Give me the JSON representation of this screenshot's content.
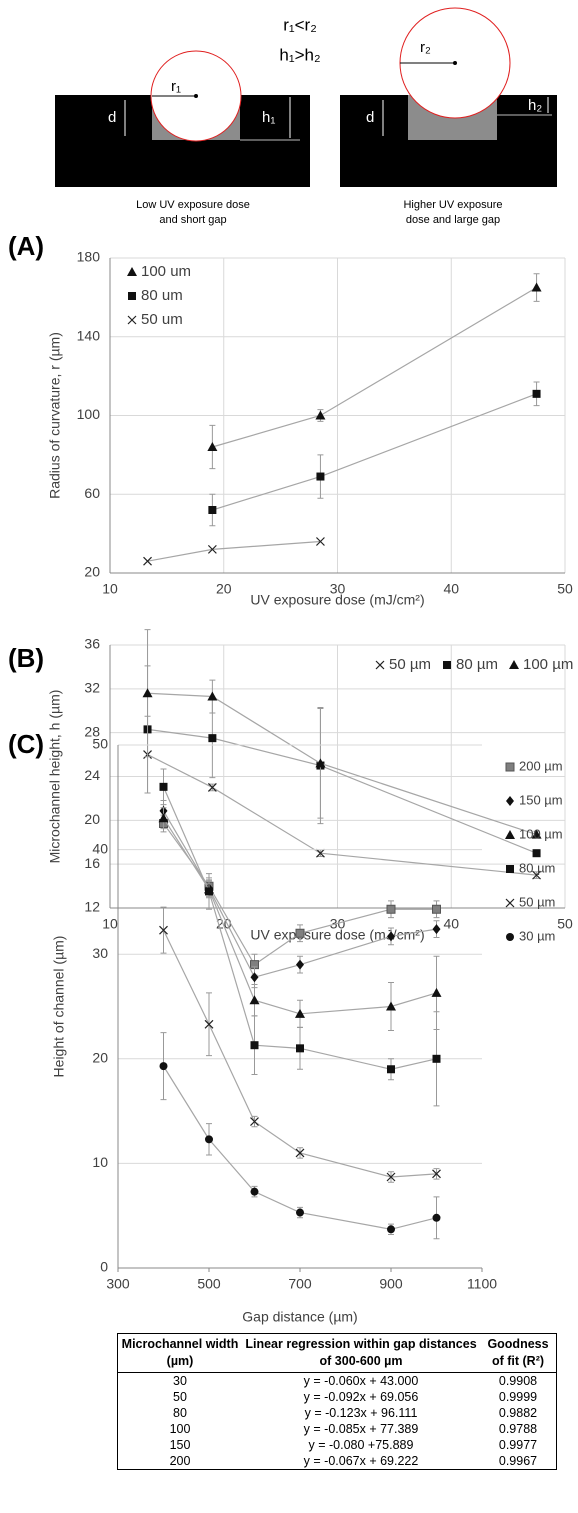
{
  "diagram": {
    "relation_r": "r₁<r₂",
    "relation_h": "h₁>h₂",
    "left": {
      "r": "r₁",
      "d": "d",
      "h": "h₁",
      "caption_1": "Low UV exposure  dose",
      "caption_2": "and short gap"
    },
    "right": {
      "r": "r₂",
      "d": "d",
      "h": "h₂",
      "caption_1": "Higher UV exposure",
      "caption_2": "dose and large gap"
    }
  },
  "chart_data": [
    {
      "type": "line",
      "label": "(A)",
      "xlabel": "UV exposure dose (mJ/cm²)",
      "ylabel": "Radius of curvature, r (µm)",
      "xlim": [
        10,
        50
      ],
      "xticks": [
        10,
        20,
        30,
        40,
        50
      ],
      "ylim": [
        20,
        180
      ],
      "yticks": [
        20,
        60,
        100,
        140,
        180
      ],
      "grid": "both",
      "legend": "upper left",
      "line_color": "#a6a6a6",
      "series": [
        {
          "name": "100 um",
          "marker": "triangle",
          "color": "#111111",
          "x": [
            19,
            28.5,
            47.5
          ],
          "values": [
            84,
            100,
            165
          ],
          "errors": [
            11,
            3,
            7
          ]
        },
        {
          "name": "80 um",
          "marker": "square",
          "color": "#111111",
          "x": [
            19,
            28.5,
            47.5
          ],
          "values": [
            52,
            69,
            111
          ],
          "errors": [
            8,
            11,
            6
          ]
        },
        {
          "name": "50 um",
          "marker": "x",
          "color": "#111111",
          "x": [
            13.3,
            19,
            28.5
          ],
          "values": [
            26,
            32,
            36
          ]
        }
      ]
    },
    {
      "type": "line",
      "label": "(B)",
      "xlabel": "UV exposure dose (mJ/cm²)",
      "ylabel": "Microchannel height, h (µm)",
      "xlim": [
        10,
        50
      ],
      "xticks": [
        10,
        20,
        30,
        40,
        50
      ],
      "ylim": [
        12,
        36
      ],
      "yticks": [
        12,
        16,
        20,
        24,
        28,
        32,
        36
      ],
      "grid": "both",
      "legend": "upper right",
      "line_color": "#a6a6a6",
      "x": [
        13.3,
        19,
        28.5,
        47.5
      ],
      "series": [
        {
          "name": "50 µm",
          "marker": "x",
          "color": "#111111",
          "values": [
            26,
            23,
            17,
            15
          ],
          "errors": [
            3.5,
            0.3,
            0.3,
            0.3
          ]
        },
        {
          "name": "80 µm",
          "marker": "square",
          "color": "#111111",
          "values": [
            28.3,
            27.5,
            25,
            17
          ],
          "errors": [
            5.8,
            3.6,
            5.3,
            0.3
          ]
        },
        {
          "name": "100 µm",
          "marker": "triangle",
          "color": "#111111",
          "values": [
            31.6,
            31.3,
            25.2,
            18.7
          ],
          "errors": [
            5.8,
            1.5,
            5,
            0.3
          ]
        }
      ]
    },
    {
      "type": "line",
      "label": "(C)",
      "xlabel": "Gap distance (µm)",
      "ylabel": "Height of channel (µm)",
      "xlim": [
        300,
        1100
      ],
      "xticks": [
        300,
        500,
        700,
        900,
        1100
      ],
      "ylim": [
        0,
        50
      ],
      "yticks": [
        0,
        10,
        20,
        30,
        40,
        50
      ],
      "grid": "y",
      "legend": "right",
      "line_color": "#a6a6a6",
      "x": [
        400,
        500,
        600,
        700,
        900,
        1000
      ],
      "series": [
        {
          "name": "200 µm",
          "marker": "square-gray",
          "color": "#7f7f7f",
          "values": [
            42.5,
            36.5,
            29,
            32,
            34.3,
            34.3
          ],
          "errors": [
            0.8,
            0.8,
            1,
            0.8,
            0.8,
            0.8
          ]
        },
        {
          "name": "150 µm",
          "marker": "diamond",
          "color": "#111111",
          "values": [
            43.7,
            36.3,
            27.8,
            29,
            31.7,
            32.4
          ],
          "errors": [
            1,
            0.8,
            1,
            0.8,
            0.8,
            0.8
          ]
        },
        {
          "name": "100 µm",
          "marker": "triangle",
          "color": "#111111",
          "values": [
            43,
            36.2,
            25.6,
            24.3,
            25,
            26.3
          ],
          "errors": [
            1,
            0.8,
            1.5,
            1.3,
            2.3,
            3.5
          ]
        },
        {
          "name": "80 µm",
          "marker": "square",
          "color": "#111111",
          "values": [
            46,
            36,
            21.3,
            21,
            19,
            20
          ],
          "errors": [
            1.7,
            1.7,
            2.8,
            2,
            1,
            4.5
          ]
        },
        {
          "name": "50 µm",
          "marker": "x",
          "color": "#111111",
          "values": [
            32.3,
            23.3,
            14,
            11,
            8.7,
            9
          ],
          "errors": [
            2.2,
            3,
            0.5,
            0.5,
            0.5,
            0.5
          ]
        },
        {
          "name": "30 µm",
          "marker": "circle",
          "color": "#111111",
          "values": [
            19.3,
            12.3,
            7.3,
            5.3,
            3.7,
            4.8
          ],
          "errors": [
            3.2,
            1.5,
            0.5,
            0.5,
            0.5,
            2
          ]
        }
      ]
    }
  ],
  "table": {
    "header": [
      "Microchannel width (µm)",
      "Linear regression within gap distances of 300-600 µm",
      "Goodness of fit (R²)"
    ],
    "rows": [
      [
        "30",
        "y = -0.060x + 43.000",
        "0.9908"
      ],
      [
        "50",
        "y = -0.092x + 69.056",
        "0.9999"
      ],
      [
        "80",
        "y = -0.123x + 96.111",
        "0.9882"
      ],
      [
        "100",
        "y = -0.085x + 77.389",
        "0.9788"
      ],
      [
        "150",
        "y = -0.080 +75.889",
        "0.9977"
      ],
      [
        "200",
        "y = -0.067x + 69.222",
        "0.9967"
      ]
    ]
  }
}
